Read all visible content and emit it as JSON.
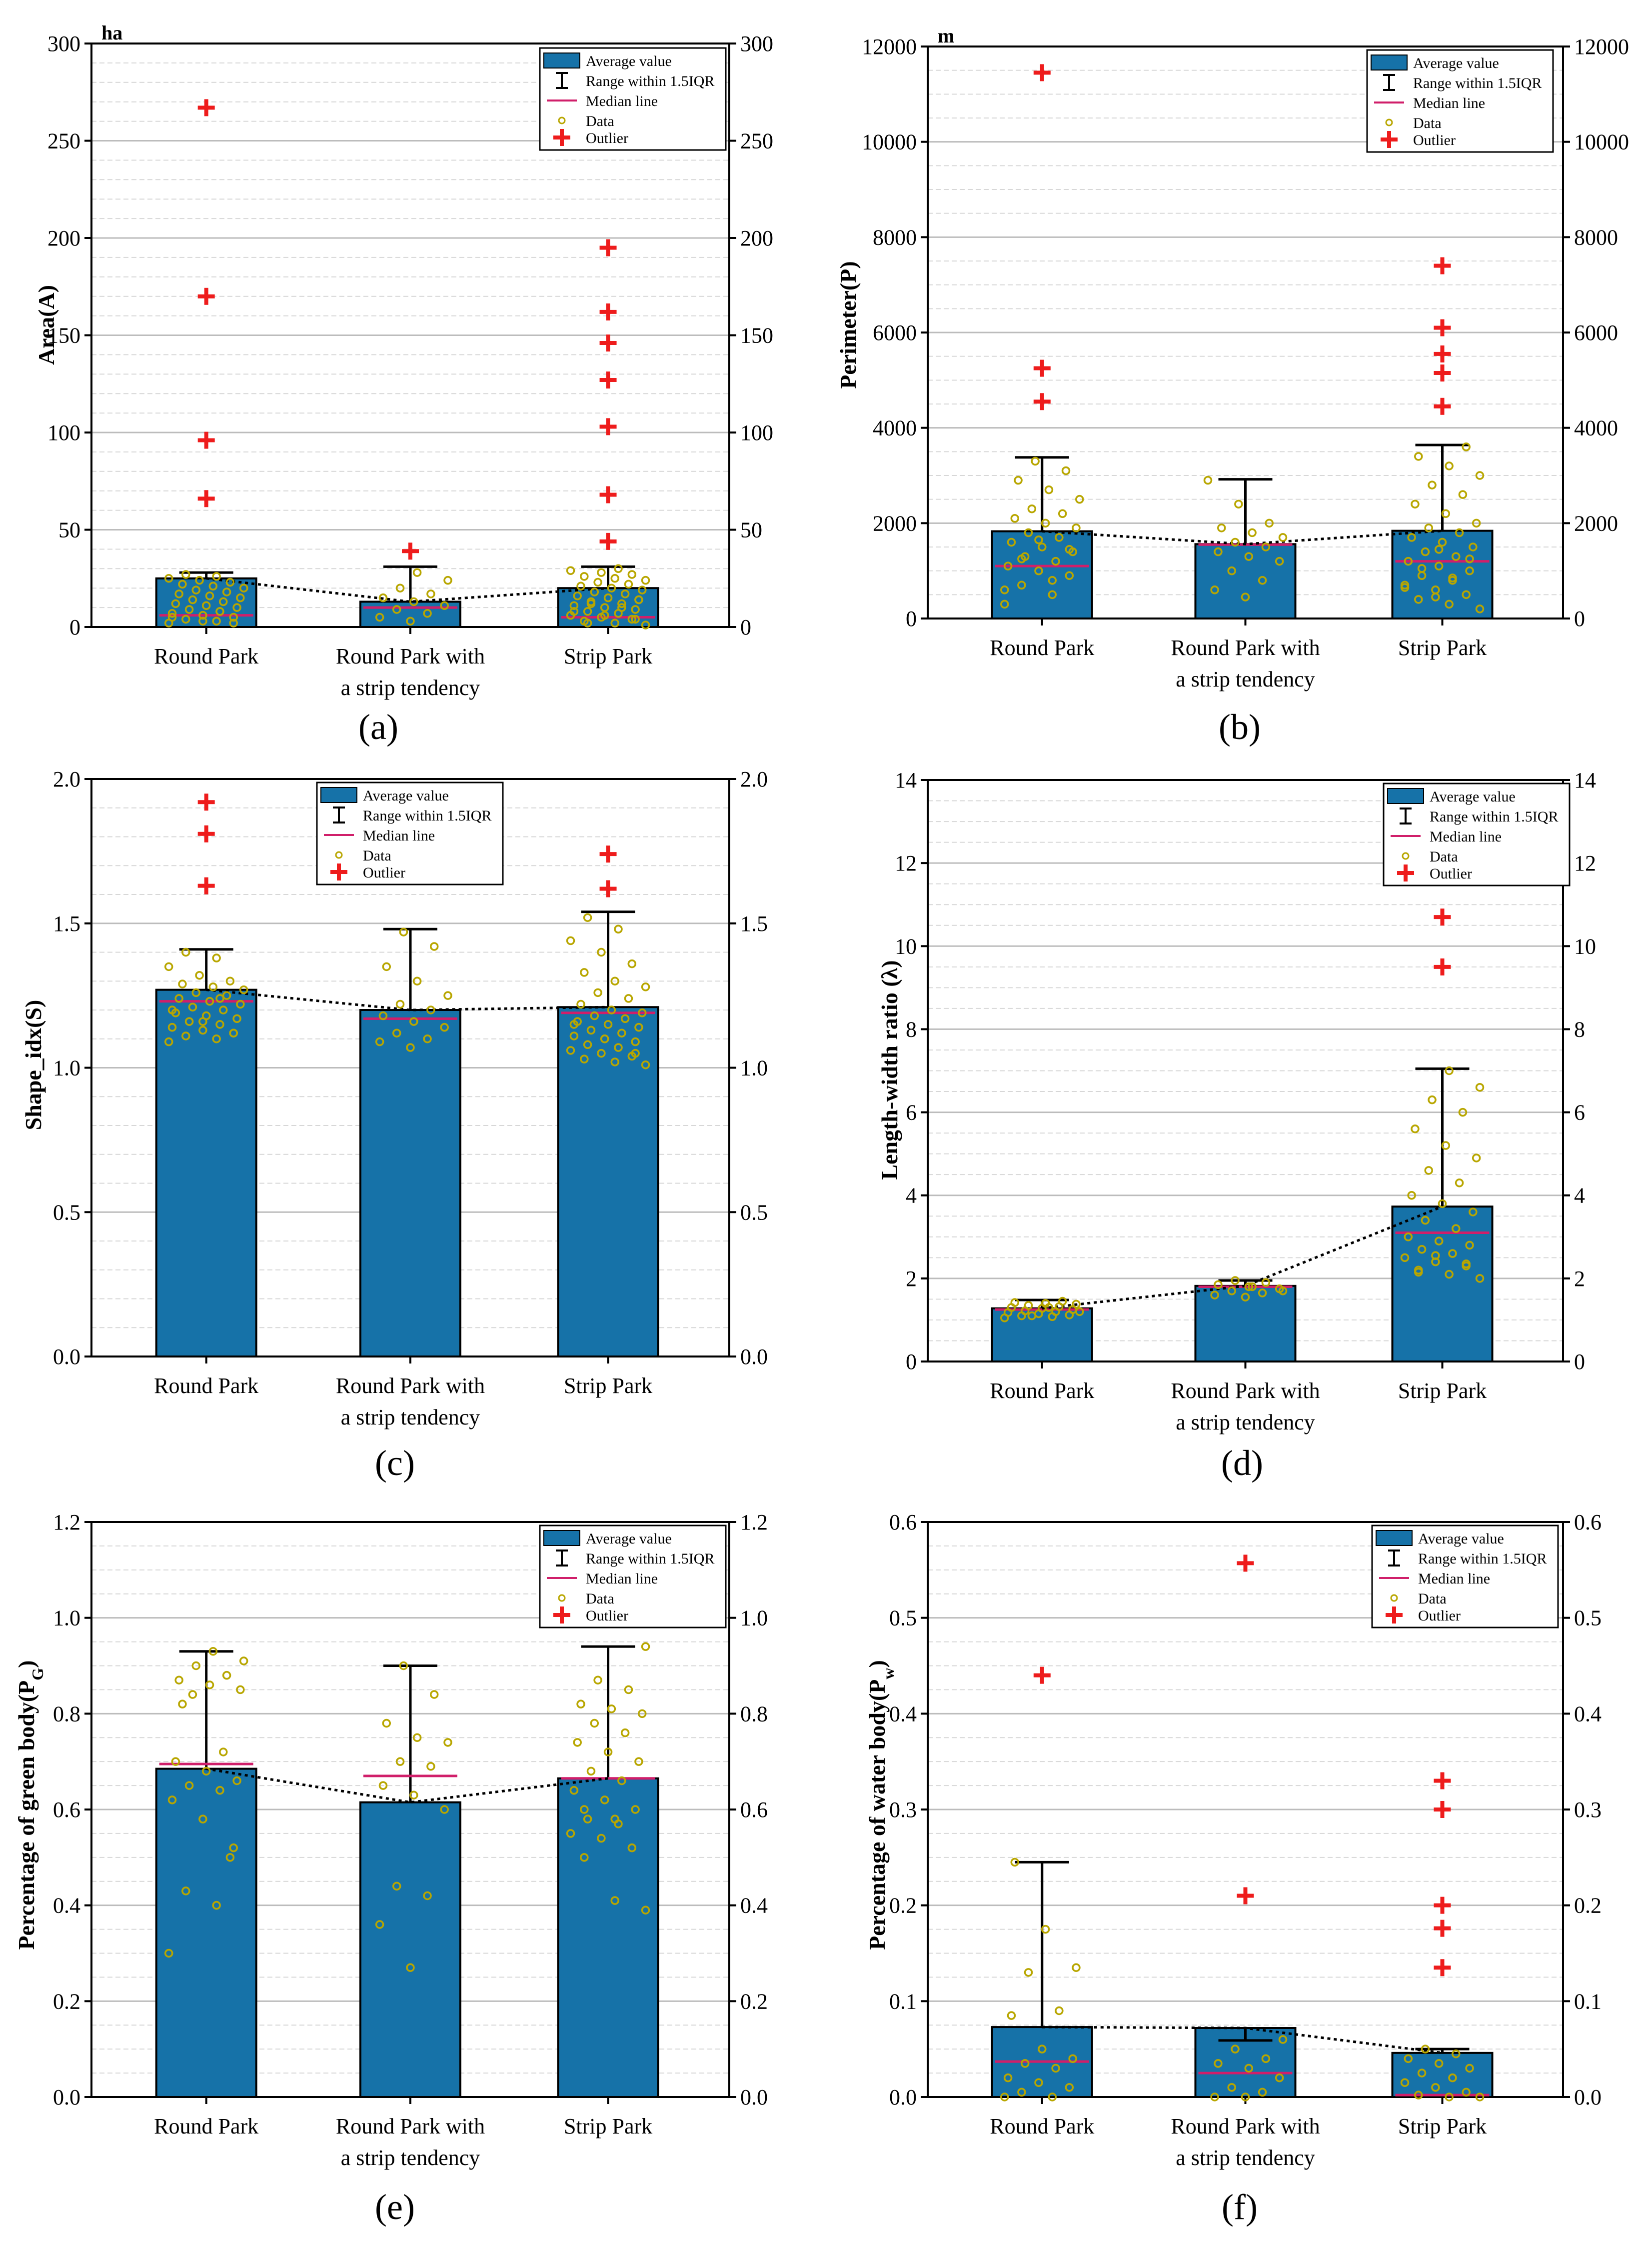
{
  "figure": {
    "legend_labels": [
      "Average value",
      "Range within 1.5IQR",
      "Median line",
      "Data",
      "Outlier"
    ],
    "colors": {
      "bar": "#1672a8",
      "median": "#d01f6a",
      "data": "#b8a600",
      "outlier": "#ee1c1c",
      "grid": "#d7d7d7"
    }
  },
  "chart_data": [
    {
      "panel": "a",
      "panel_label": "(a)",
      "type": "bar",
      "categories": [
        "Round Park",
        "Round Park with",
        "Strip Park"
      ],
      "categories_line2": [
        "",
        "a strip tendency",
        ""
      ],
      "unit": "ha",
      "ylabel": "Area(A)",
      "ylim": [
        0,
        300
      ],
      "ticks": [
        0,
        50,
        100,
        150,
        200,
        250,
        300
      ],
      "tick_labels": [
        "0",
        "50",
        "100",
        "150",
        "200",
        "250",
        "300"
      ],
      "minor_step": 10,
      "means": [
        25,
        13,
        20
      ],
      "medians": [
        6,
        10,
        5
      ],
      "whisker_top": [
        28,
        31,
        31
      ],
      "outliers": [
        [
          66,
          96,
          170,
          267
        ],
        [
          39
        ],
        [
          44,
          68,
          103,
          127,
          146,
          162,
          195
        ]
      ],
      "data_points": [
        [
          2,
          3,
          4,
          5,
          6,
          7,
          8,
          9,
          10,
          11,
          12,
          13,
          14,
          15,
          16,
          17,
          18,
          19,
          20,
          21,
          22,
          23,
          24,
          25,
          26,
          27,
          2,
          3,
          5,
          8
        ],
        [
          3,
          5,
          7,
          9,
          11,
          13,
          15,
          17,
          20,
          24,
          28
        ],
        [
          1,
          2,
          3,
          4,
          5,
          6,
          7,
          8,
          9,
          10,
          11,
          12,
          13,
          14,
          15,
          16,
          17,
          18,
          19,
          20,
          21,
          22,
          23,
          24,
          25,
          26,
          27,
          28,
          29,
          30,
          2,
          4,
          6,
          8,
          10,
          12,
          14
        ]
      ]
    },
    {
      "panel": "b",
      "panel_label": "(b)",
      "type": "bar",
      "categories": [
        "Round Park",
        "Round Park with",
        "Strip Park"
      ],
      "categories_line2": [
        "",
        "a strip tendency",
        ""
      ],
      "unit": "m",
      "ylabel": "Perimeter(P)",
      "ylim": [
        0,
        12000
      ],
      "ticks": [
        0,
        2000,
        4000,
        6000,
        8000,
        10000,
        12000
      ],
      "tick_labels": [
        "0",
        "2000",
        "4000",
        "6000",
        "8000",
        "10000",
        "12000"
      ],
      "minor_step": 500,
      "means": [
        1830,
        1560,
        1840
      ],
      "medians": [
        1100,
        1550,
        1200
      ],
      "whisker_top": [
        3380,
        2920,
        3640
      ],
      "outliers": [
        [
          4550,
          5250,
          11450
        ],
        [],
        [
          4450,
          5150,
          5550,
          6100,
          7400
        ]
      ],
      "data_points": [
        [
          300,
          500,
          700,
          900,
          1000,
          1100,
          1200,
          1300,
          1400,
          1500,
          1600,
          1700,
          1800,
          1900,
          2000,
          2100,
          2200,
          2300,
          2500,
          2700,
          2900,
          3100,
          3300,
          600,
          800,
          1250,
          1450,
          1650
        ],
        [
          450,
          600,
          800,
          1000,
          1200,
          1300,
          1400,
          1500,
          1600,
          1700,
          1800,
          1900,
          2000,
          2400,
          2900
        ],
        [
          200,
          300,
          400,
          500,
          600,
          700,
          800,
          900,
          1000,
          1100,
          1200,
          1300,
          1400,
          1500,
          1600,
          1700,
          1800,
          1900,
          2000,
          2200,
          2400,
          2600,
          2800,
          3000,
          3200,
          3400,
          3600,
          450,
          650,
          850,
          1050,
          1250,
          1450
        ]
      ]
    },
    {
      "panel": "c",
      "panel_label": "(c)",
      "type": "bar",
      "categories": [
        "Round Park",
        "Round Park with",
        "Strip Park"
      ],
      "categories_line2": [
        "",
        "a strip tendency",
        ""
      ],
      "unit": "",
      "ylabel": "Shape_idx(S)",
      "ylim": [
        0,
        2.0
      ],
      "ticks": [
        0,
        0.5,
        1.0,
        1.5,
        2.0
      ],
      "tick_labels": [
        "0.0",
        "0.5",
        "1.0",
        "1.5",
        "2.0"
      ],
      "minor_step": 0.1,
      "means": [
        1.27,
        1.2,
        1.21
      ],
      "medians": [
        1.23,
        1.17,
        1.19
      ],
      "whisker_top": [
        1.41,
        1.48,
        1.54
      ],
      "outliers": [
        [
          1.63,
          1.81,
          1.92
        ],
        [],
        [
          1.62,
          1.74
        ]
      ],
      "data_points": [
        [
          1.09,
          1.1,
          1.11,
          1.12,
          1.13,
          1.14,
          1.15,
          1.16,
          1.17,
          1.18,
          1.19,
          1.2,
          1.21,
          1.22,
          1.23,
          1.24,
          1.25,
          1.26,
          1.27,
          1.28,
          1.29,
          1.3,
          1.32,
          1.35,
          1.38,
          1.4,
          1.12,
          1.16,
          1.2,
          1.24
        ],
        [
          1.07,
          1.09,
          1.1,
          1.12,
          1.14,
          1.16,
          1.18,
          1.2,
          1.22,
          1.25,
          1.3,
          1.35,
          1.42,
          1.47
        ],
        [
          1.01,
          1.02,
          1.03,
          1.04,
          1.05,
          1.06,
          1.07,
          1.08,
          1.09,
          1.1,
          1.11,
          1.12,
          1.13,
          1.14,
          1.15,
          1.16,
          1.17,
          1.18,
          1.19,
          1.2,
          1.22,
          1.24,
          1.26,
          1.28,
          1.3,
          1.33,
          1.36,
          1.4,
          1.44,
          1.48,
          1.52,
          1.05,
          1.1,
          1.15
        ]
      ]
    },
    {
      "panel": "d",
      "panel_label": "(d)",
      "type": "bar",
      "categories": [
        "Round Park",
        "Round Park with",
        "Strip Park"
      ],
      "categories_line2": [
        "",
        "a strip tendency",
        ""
      ],
      "unit": "",
      "ylabel": "Length-width ratio (λ)",
      "ylim": [
        0,
        14
      ],
      "ticks": [
        0,
        2,
        4,
        6,
        8,
        10,
        12,
        14
      ],
      "tick_labels": [
        "0",
        "2",
        "4",
        "6",
        "8",
        "10",
        "12",
        "14"
      ],
      "minor_step": 0.5,
      "means": [
        1.28,
        1.82,
        3.73
      ],
      "medians": [
        1.25,
        1.8,
        3.1
      ],
      "whisker_top": [
        1.48,
        1.95,
        7.05
      ],
      "outliers": [
        [],
        [],
        [
          9.5,
          10.7
        ]
      ],
      "data_points": [
        [
          1.05,
          1.08,
          1.1,
          1.12,
          1.15,
          1.18,
          1.2,
          1.22,
          1.25,
          1.28,
          1.3,
          1.32,
          1.35,
          1.38,
          1.4,
          1.42,
          1.45,
          1.1,
          1.2,
          1.3
        ],
        [
          1.55,
          1.6,
          1.65,
          1.7,
          1.75,
          1.8,
          1.85,
          1.9,
          1.95,
          1.7,
          1.8
        ],
        [
          2.0,
          2.1,
          2.2,
          2.3,
          2.4,
          2.5,
          2.6,
          2.7,
          2.8,
          2.9,
          3.0,
          3.2,
          3.4,
          3.6,
          3.8,
          4.0,
          4.3,
          4.6,
          4.9,
          5.2,
          5.6,
          6.0,
          6.3,
          6.6,
          7.0,
          2.15,
          2.35,
          2.55
        ]
      ]
    },
    {
      "panel": "e",
      "panel_label": "(e)",
      "type": "bar",
      "categories": [
        "Round Park",
        "Round Park with",
        "Strip Park"
      ],
      "categories_line2": [
        "",
        "a strip tendency",
        ""
      ],
      "unit": "",
      "ylabel": "Percentage of green body(P",
      "ylabel_sub": "G",
      "ylabel_end": ")",
      "ylim": [
        0,
        1.2
      ],
      "ticks": [
        0,
        0.2,
        0.4,
        0.6,
        0.8,
        1.0,
        1.2
      ],
      "tick_labels": [
        "0.0",
        "0.2",
        "0.4",
        "0.6",
        "0.8",
        "1.0",
        "1.2"
      ],
      "minor_step": 0.05,
      "means": [
        0.685,
        0.615,
        0.665
      ],
      "medians": [
        0.695,
        0.67,
        0.665
      ],
      "whisker_top": [
        0.93,
        0.9,
        0.94
      ],
      "outliers": [
        [],
        [],
        []
      ],
      "data_points": [
        [
          0.3,
          0.4,
          0.43,
          0.52,
          0.58,
          0.62,
          0.64,
          0.65,
          0.66,
          0.68,
          0.7,
          0.72,
          0.84,
          0.85,
          0.86,
          0.87,
          0.88,
          0.9,
          0.91,
          0.93,
          0.82,
          0.5
        ],
        [
          0.27,
          0.36,
          0.42,
          0.44,
          0.6,
          0.63,
          0.65,
          0.69,
          0.7,
          0.74,
          0.75,
          0.78,
          0.84,
          0.9
        ],
        [
          0.39,
          0.41,
          0.5,
          0.52,
          0.54,
          0.55,
          0.57,
          0.58,
          0.6,
          0.62,
          0.64,
          0.66,
          0.68,
          0.7,
          0.72,
          0.74,
          0.76,
          0.78,
          0.8,
          0.81,
          0.82,
          0.85,
          0.87,
          0.94,
          0.58,
          0.6
        ]
      ]
    },
    {
      "panel": "f",
      "panel_label": "(f)",
      "type": "bar",
      "categories": [
        "Round Park",
        "Round Park with",
        "Strip Park"
      ],
      "categories_line2": [
        "",
        "a strip tendency",
        ""
      ],
      "unit": "",
      "ylabel": "Percentage of water body(P",
      "ylabel_sub": "w",
      "ylabel_end": ")",
      "ylim": [
        0,
        0.6
      ],
      "ticks": [
        0,
        0.1,
        0.2,
        0.3,
        0.4,
        0.5,
        0.6
      ],
      "tick_labels": [
        "0.0",
        "0.1",
        "0.2",
        "0.3",
        "0.4",
        "0.5",
        "0.6"
      ],
      "minor_step": 0.025,
      "means": [
        0.073,
        0.072,
        0.046
      ],
      "medians": [
        0.037,
        0.025,
        0.002
      ],
      "whisker_top": [
        0.245,
        0.059,
        0.05
      ],
      "outliers": [
        [
          0.44
        ],
        [
          0.21,
          0.557
        ],
        [
          0.135,
          0.176,
          0.2,
          0.3,
          0.33
        ]
      ],
      "data_points": [
        [
          0.0,
          0.0,
          0.005,
          0.01,
          0.015,
          0.02,
          0.03,
          0.035,
          0.04,
          0.05,
          0.085,
          0.09,
          0.13,
          0.135,
          0.175,
          0.245
        ],
        [
          0.0,
          0.0,
          0.005,
          0.01,
          0.02,
          0.03,
          0.035,
          0.04,
          0.05,
          0.06
        ],
        [
          0.0,
          0.0,
          0.002,
          0.005,
          0.01,
          0.015,
          0.02,
          0.025,
          0.03,
          0.035,
          0.04,
          0.045,
          0.05
        ]
      ]
    }
  ]
}
